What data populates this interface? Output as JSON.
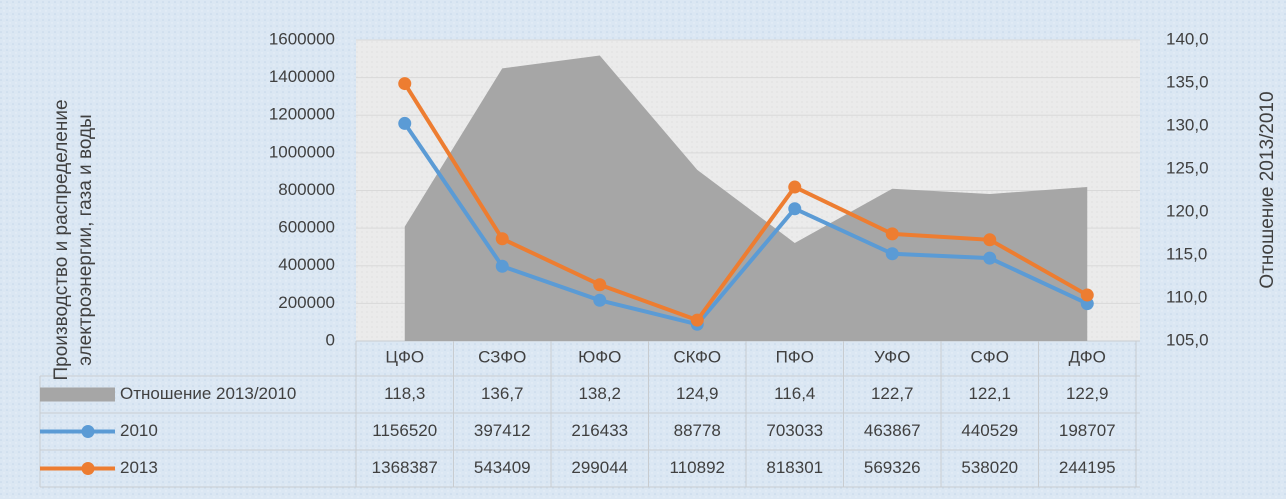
{
  "chart_data": {
    "type": "line",
    "categories": [
      "ЦФО",
      "СЗФО",
      "ЮФО",
      "СКФО",
      "ПФО",
      "УФО",
      "СФО",
      "ДФО"
    ],
    "ylabel": [
      "Производство и распределение",
      "электроэнергии, газа и воды"
    ],
    "y2label": "Отношение 2013/2010",
    "ylim": [
      0,
      1600000
    ],
    "yticks": [
      0,
      200000,
      400000,
      600000,
      800000,
      1000000,
      1200000,
      1400000,
      1600000
    ],
    "y2lim": [
      105,
      140
    ],
    "y2ticks": [
      {
        "value": 105,
        "label": "105,0"
      },
      {
        "value": 110,
        "label": "110,0"
      },
      {
        "value": 115,
        "label": "115,0"
      },
      {
        "value": 120,
        "label": "120,0"
      },
      {
        "value": 125,
        "label": "125,0"
      },
      {
        "value": 130,
        "label": "130,0"
      },
      {
        "value": 135,
        "label": "135,0"
      },
      {
        "value": 140,
        "label": "140,0"
      }
    ],
    "grid": true,
    "series": [
      {
        "name": "Отношение 2013/2010",
        "type": "area",
        "axis": "y2",
        "color": "#a6a6a6",
        "values": [
          118.3,
          136.7,
          138.2,
          124.9,
          116.4,
          122.7,
          122.1,
          122.9
        ],
        "value_labels": [
          "118,3",
          "136,7",
          "138,2",
          "124,9",
          "116,4",
          "122,7",
          "122,1",
          "122,9"
        ]
      },
      {
        "name": "2010",
        "type": "line",
        "color": "#5b9bd5",
        "values": [
          1156520,
          397412,
          216433,
          88778,
          703033,
          463867,
          440529,
          198707
        ]
      },
      {
        "name": "2013",
        "type": "line",
        "color": "#ed7d31",
        "values": [
          1368387,
          543409,
          299044,
          110892,
          818301,
          569326,
          538020,
          244195
        ]
      }
    ]
  }
}
